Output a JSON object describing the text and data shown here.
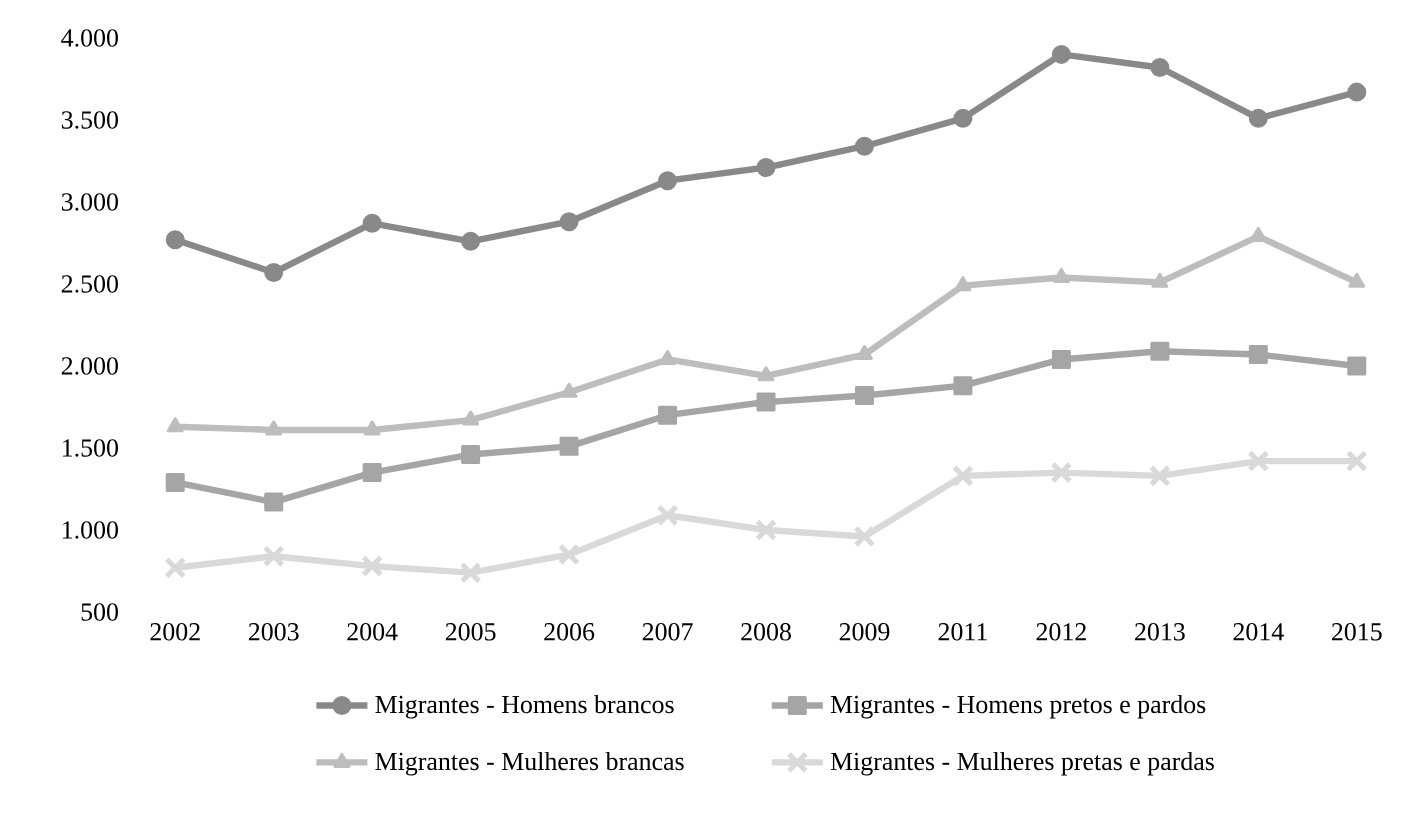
{
  "chart_data": {
    "type": "line",
    "categories": [
      "2002",
      "2003",
      "2004",
      "2005",
      "2006",
      "2007",
      "2008",
      "2009",
      "2011",
      "2012",
      "2013",
      "2014",
      "2015"
    ],
    "series": [
      {
        "name": "Migrantes - Homens brancos",
        "color": "#898989",
        "marker": "circle",
        "values": [
          2770,
          2570,
          2870,
          2760,
          2880,
          3130,
          3210,
          3340,
          3510,
          3900,
          3820,
          3510,
          3670
        ]
      },
      {
        "name": "Migrantes - Homens pretos e pardos",
        "color": "#a5a5a5",
        "marker": "square",
        "values": [
          1290,
          1170,
          1350,
          1460,
          1510,
          1700,
          1780,
          1820,
          1880,
          2040,
          2090,
          2070,
          2000
        ]
      },
      {
        "name": "Migrantes - Mulheres brancas",
        "color": "#bdbdbd",
        "marker": "triangle",
        "values": [
          1630,
          1610,
          1610,
          1670,
          1840,
          2040,
          1940,
          2070,
          2490,
          2540,
          2510,
          2790,
          2510
        ]
      },
      {
        "name": "Migrantes - Mulheres pretas e pardas",
        "color": "#d9d9d9",
        "marker": "cross",
        "values": [
          770,
          840,
          780,
          740,
          850,
          1090,
          1000,
          960,
          1330,
          1350,
          1330,
          1420,
          1420
        ]
      }
    ],
    "ylim": [
      500,
      4000
    ],
    "yticks": [
      {
        "value": 500,
        "label": "500"
      },
      {
        "value": 1000,
        "label": "1.000"
      },
      {
        "value": 1500,
        "label": "1.500"
      },
      {
        "value": 2000,
        "label": "2.000"
      },
      {
        "value": 2500,
        "label": "2.500"
      },
      {
        "value": 3000,
        "label": "3.000"
      },
      {
        "value": 3500,
        "label": "3.500"
      },
      {
        "value": 4000,
        "label": "4.000"
      }
    ],
    "legend": "bottom",
    "line_style": "solid"
  }
}
